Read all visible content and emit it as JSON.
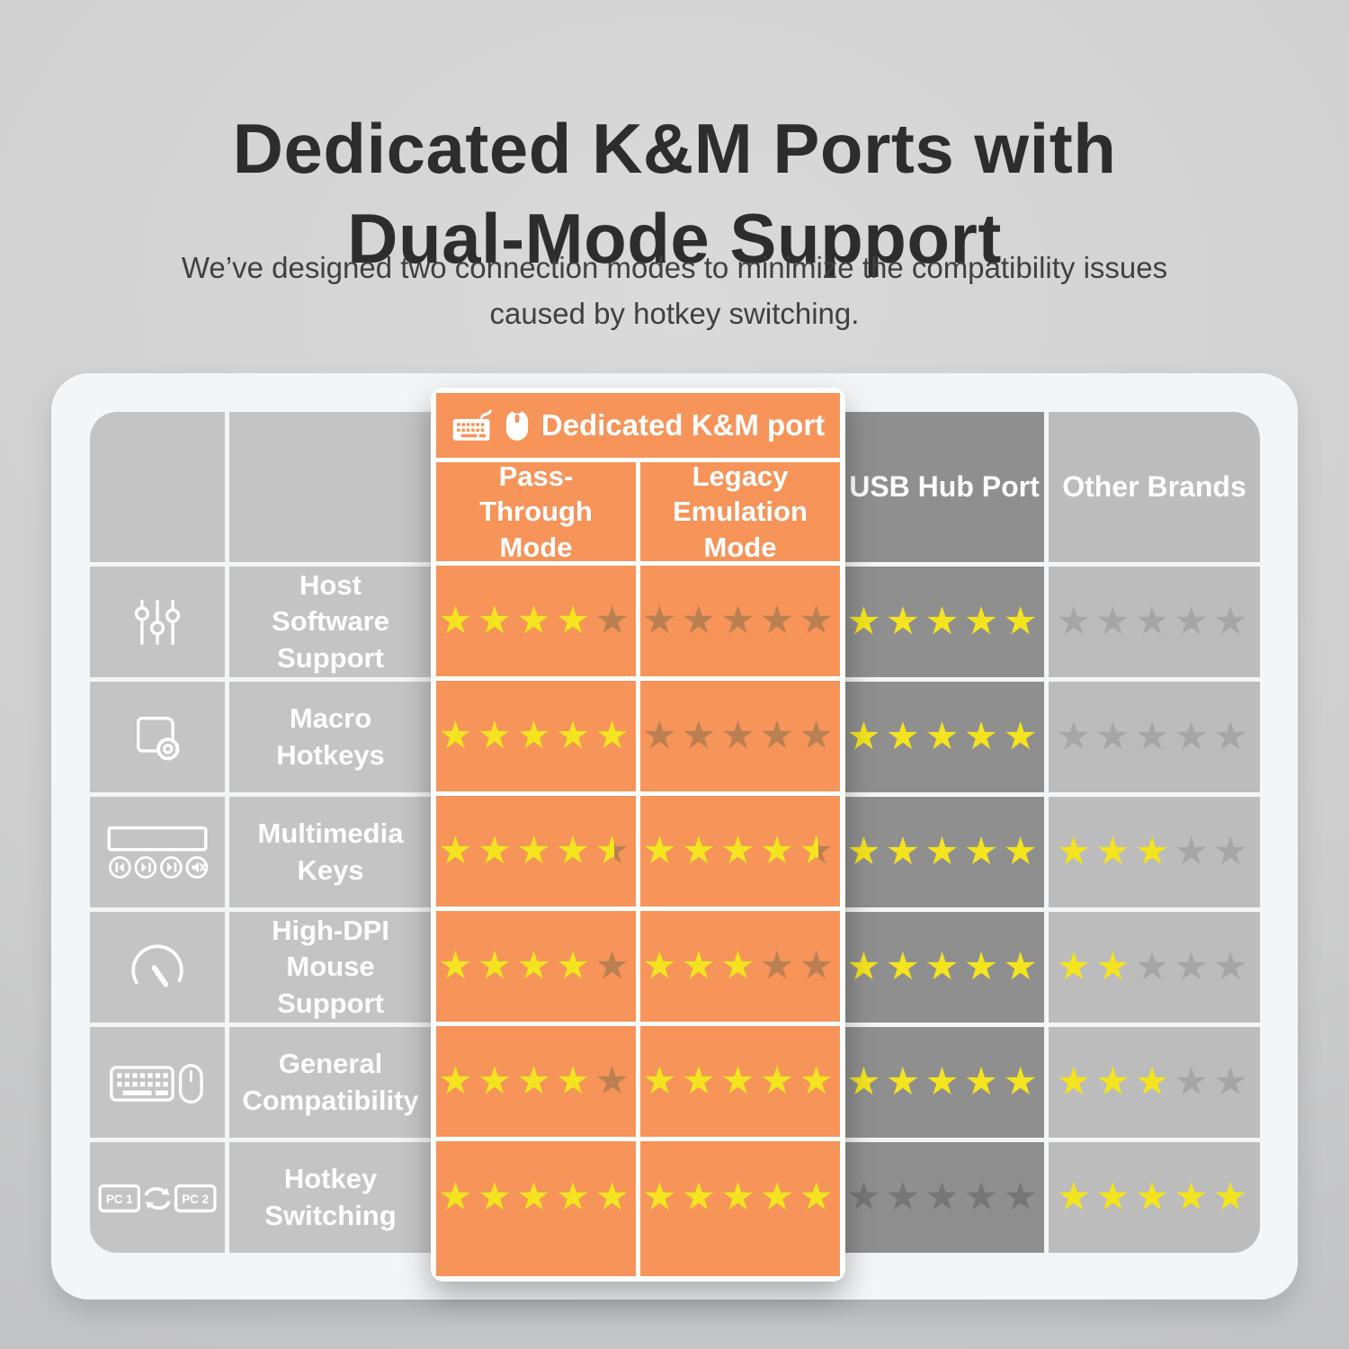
{
  "header": {
    "title_line1": "Dedicated K&M Ports with",
    "title_line2": "Dual-Mode Support",
    "subtitle_line1": "We’ve designed two connection modes to minimize the compatibility issues",
    "subtitle_line2": "caused by hotkey switching."
  },
  "table": {
    "km_group_label": "Dedicated K&M port",
    "km_group_icons": [
      "keyboard-icon",
      "mouse-icon"
    ],
    "max_stars": 5,
    "columns": [
      {
        "id": "pass_through",
        "label": "Pass-Through Mode",
        "group": "Dedicated K&M port"
      },
      {
        "id": "legacy",
        "label": "Legacy Emulation Mode",
        "group": "Dedicated K&M port"
      },
      {
        "id": "usb_hub",
        "label": "USB Hub Port"
      },
      {
        "id": "other",
        "label": "Other Brands"
      }
    ],
    "rows": [
      {
        "feature": "Host Software Support",
        "icon": "sliders-icon",
        "ratings": {
          "pass_through": 4,
          "legacy": 0,
          "usb_hub": 5,
          "other": 0
        }
      },
      {
        "feature": "Macro Hotkeys",
        "icon": "macro-gear-icon",
        "ratings": {
          "pass_through": 5,
          "legacy": 0,
          "usb_hub": 5,
          "other": 0
        }
      },
      {
        "feature": "Multimedia Keys",
        "icon": "media-controls-icon",
        "ratings": {
          "pass_through": 4.5,
          "legacy": 4.5,
          "usb_hub": 5,
          "other": 3
        }
      },
      {
        "feature": "High-DPI Mouse Support",
        "icon": "speedometer-icon",
        "ratings": {
          "pass_through": 4,
          "legacy": 3,
          "usb_hub": 5,
          "other": 2
        }
      },
      {
        "feature": "General Compatibility",
        "icon": "keyboard-mouse-icon",
        "ratings": {
          "pass_through": 4,
          "legacy": 5,
          "usb_hub": 5,
          "other": 3
        }
      },
      {
        "feature": "Hotkey Switching",
        "icon": "pc-switch-icon",
        "ratings": {
          "pass_through": 5,
          "legacy": 5,
          "usb_hub": 0,
          "other": 5
        }
      }
    ],
    "pc_switch_labels": [
      "PC 1",
      "PC 2"
    ]
  },
  "colors": {
    "accent_orange": "#F6945A",
    "star_yellow": "#F4E41F",
    "star_dim_on_orange": "#BA8052",
    "star_dim_on_dark": "#767676",
    "star_dim_on_light": "#A6A6A6",
    "column_dark_gray": "#8F8F8F",
    "column_light_gray": "#BCBCBC",
    "feature_gray": "#C4C4C4"
  },
  "chart_data": {
    "type": "table",
    "title": "Dedicated K&M Ports with Dual-Mode Support",
    "columns": [
      "Pass-Through Mode",
      "Legacy Emulation Mode",
      "USB Hub Port",
      "Other Brands"
    ],
    "rows": [
      "Host Software Support",
      "Macro Hotkeys",
      "Multimedia Keys",
      "High-DPI Mouse Support",
      "General Compatibility",
      "Hotkey Switching"
    ],
    "values_stars_out_of_5": [
      [
        4,
        0,
        5,
        0
      ],
      [
        5,
        0,
        5,
        0
      ],
      [
        4.5,
        4.5,
        5,
        3
      ],
      [
        4,
        3,
        5,
        2
      ],
      [
        4,
        5,
        5,
        3
      ],
      [
        5,
        5,
        0,
        5
      ]
    ]
  }
}
